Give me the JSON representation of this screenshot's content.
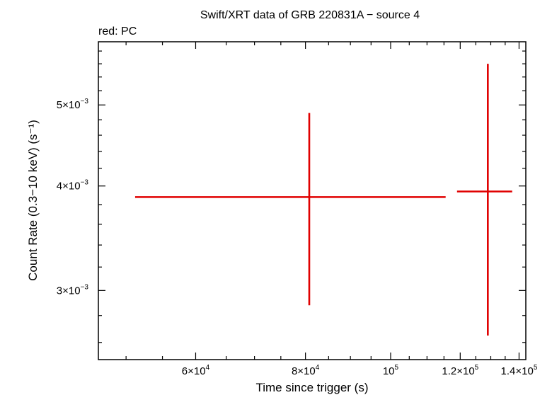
{
  "chart_data": {
    "type": "scatter",
    "title": "Swift/XRT data of GRB 220831A − source 4",
    "subtitle": "red: PC",
    "xlabel": "Time since trigger (s)",
    "ylabel": "Count Rate (0.3−10 keV) (s⁻¹)",
    "x_scale": "log",
    "y_scale": "log",
    "xlim": [
      46500,
      142500
    ],
    "ylim": [
      0.00248,
      0.00595
    ],
    "x_ticks": [
      {
        "value": 60000,
        "mant": "6×10",
        "exp": "4"
      },
      {
        "value": 80000,
        "mant": "8×10",
        "exp": "4"
      },
      {
        "value": 100000,
        "mant": "10",
        "exp": "5"
      },
      {
        "value": 120000,
        "mant": "1.2×10",
        "exp": "5"
      },
      {
        "value": 140000,
        "mant": "1.4×10",
        "exp": "5"
      }
    ],
    "y_ticks": [
      {
        "value": 0.003,
        "mant": "3×10",
        "exp": "−3"
      },
      {
        "value": 0.004,
        "mant": "4×10",
        "exp": "−3"
      },
      {
        "value": 0.005,
        "mant": "5×10",
        "exp": "−3"
      }
    ],
    "series": [
      {
        "name": "PC",
        "color": "#e00000",
        "points": [
          {
            "x": 80800,
            "x_lo": 51200,
            "x_hi": 115500,
            "y": 0.00388,
            "y_lo": 0.00288,
            "y_hi": 0.00489
          },
          {
            "x": 129000,
            "x_lo": 119000,
            "x_hi": 137500,
            "y": 0.00394,
            "y_lo": 0.00265,
            "y_hi": 0.0056
          }
        ]
      }
    ],
    "grid": false,
    "legend": "none"
  }
}
